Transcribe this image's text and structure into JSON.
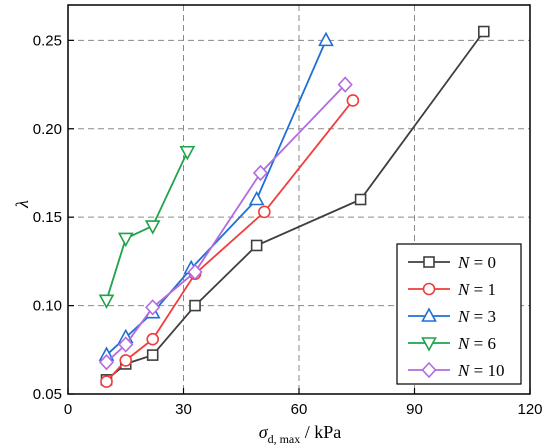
{
  "chart_data": {
    "type": "line",
    "xlabel": {
      "symbol": "σ",
      "subscript": "d, max",
      "unit": " / kPa"
    },
    "ylabel": "λ",
    "xlim": [
      0,
      120
    ],
    "ylim": [
      0.05,
      0.27
    ],
    "xticks": [
      "0",
      "30",
      "60",
      "90",
      "120"
    ],
    "yticks": [
      "0.05",
      "0.10",
      "0.15",
      "0.20",
      "0.25"
    ],
    "grid": true,
    "legend_position": "bottom-right",
    "series": [
      {
        "name": "N = 0",
        "label_var": "N",
        "label_value": "0",
        "marker": "square",
        "color": "#3f3f3f",
        "points": [
          [
            10,
            0.058
          ],
          [
            15,
            0.067
          ],
          [
            22,
            0.072
          ],
          [
            33,
            0.1
          ],
          [
            49,
            0.134
          ],
          [
            76,
            0.16
          ],
          [
            108,
            0.255
          ]
        ]
      },
      {
        "name": "N = 1",
        "label_var": "N",
        "label_value": "1",
        "marker": "circle",
        "color": "#f03c3c",
        "points": [
          [
            10,
            0.057
          ],
          [
            15,
            0.069
          ],
          [
            22,
            0.081
          ],
          [
            33,
            0.118
          ],
          [
            51,
            0.153
          ],
          [
            74,
            0.216
          ]
        ]
      },
      {
        "name": "N = 3",
        "label_var": "N",
        "label_value": "3",
        "marker": "triangle-up",
        "color": "#1f6fd6",
        "points": [
          [
            10,
            0.072
          ],
          [
            15,
            0.082
          ],
          [
            22,
            0.096
          ],
          [
            32,
            0.121
          ],
          [
            49,
            0.16
          ],
          [
            67,
            0.25
          ]
        ]
      },
      {
        "name": "N = 6",
        "label_var": "N",
        "label_value": "6",
        "marker": "triangle-down",
        "color": "#1fa34a",
        "points": [
          [
            10,
            0.103
          ],
          [
            15,
            0.138
          ],
          [
            22,
            0.145
          ],
          [
            31,
            0.187
          ]
        ]
      },
      {
        "name": "N = 10",
        "label_var": "N",
        "label_value": "10",
        "marker": "diamond",
        "color": "#b36be0",
        "points": [
          [
            10,
            0.068
          ],
          [
            15,
            0.078
          ],
          [
            22,
            0.099
          ],
          [
            33,
            0.119
          ],
          [
            50,
            0.175
          ],
          [
            72,
            0.225
          ]
        ]
      }
    ]
  }
}
